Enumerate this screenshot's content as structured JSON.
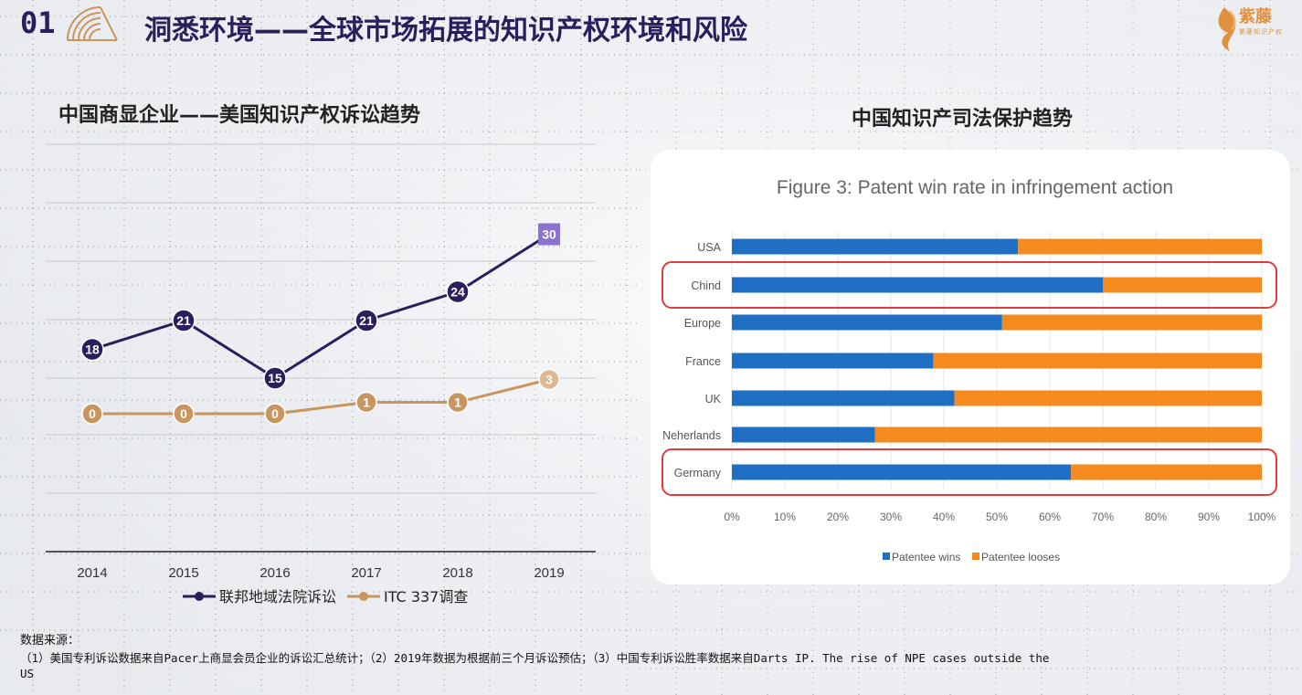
{
  "header": {
    "number": "01",
    "title": "洞悉环境——全球市场拓展的知识产权环境和风险"
  },
  "logo": {
    "name": "紫藤",
    "sub": "紫藤知识产权"
  },
  "colors": {
    "navy": "#2b1e5c",
    "gold": "#c9955e",
    "accent_purple": "#8a72d0",
    "bar_blue": "#1f6fc4",
    "bar_orange": "#f58a1f",
    "highlight_red": "#e23b3b"
  },
  "chart_data": [
    {
      "type": "line",
      "title": "中国商显企业——美国知识产权诉讼趋势",
      "categories": [
        "2014",
        "2015",
        "2016",
        "2017",
        "2018",
        "2019"
      ],
      "series": [
        {
          "name": "联邦地域法院诉讼",
          "values": [
            18,
            21,
            15,
            21,
            24,
            30
          ]
        },
        {
          "name": "ITC 337调查",
          "values": [
            0,
            0,
            0,
            1,
            1,
            3
          ]
        }
      ],
      "legend": "bottom",
      "grid": true
    },
    {
      "type": "bar",
      "orientation": "horizontal-stacked-percent",
      "title": "中国知识产司法保护趋势",
      "figure_title": "Figure 3: Patent win rate in infringement action",
      "categories": [
        "USA",
        "Chind",
        "Europe",
        "France",
        "UK",
        "Neherlands",
        "Germany"
      ],
      "highlighted": [
        "Chind",
        "Germany"
      ],
      "series": [
        {
          "name": "Patentee wins",
          "values": [
            54,
            70,
            51,
            38,
            42,
            27,
            64
          ]
        },
        {
          "name": "Patentee looses",
          "values": [
            46,
            30,
            49,
            62,
            58,
            73,
            36
          ]
        }
      ],
      "xticks": [
        "0%",
        "10%",
        "20%",
        "30%",
        "40%",
        "50%",
        "60%",
        "70%",
        "80%",
        "90%",
        "100%"
      ],
      "xlim": [
        0,
        100
      ],
      "legend": "bottom"
    }
  ],
  "footer": {
    "label": "数据来源：",
    "line1": "（1）美国专利诉讼数据来自Pacer上商显会员企业的诉讼汇总统计；（2）2019年数据为根据前三个月诉讼预估；（3）中国专利诉讼胜率数据来自Darts IP. The rise of NPE cases outside the",
    "line2": "US"
  }
}
